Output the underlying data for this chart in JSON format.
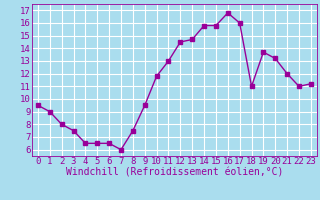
{
  "x": [
    0,
    1,
    2,
    3,
    4,
    5,
    6,
    7,
    8,
    9,
    10,
    11,
    12,
    13,
    14,
    15,
    16,
    17,
    18,
    19,
    20,
    21,
    22,
    23
  ],
  "y": [
    9.5,
    9.0,
    8.0,
    7.5,
    6.5,
    6.5,
    6.5,
    6.0,
    7.5,
    9.5,
    11.8,
    13.0,
    14.5,
    14.7,
    15.8,
    15.8,
    16.8,
    16.0,
    11.0,
    13.7,
    13.2,
    12.0,
    11.0,
    11.2
  ],
  "line_color": "#990099",
  "marker_color": "#990099",
  "bg_color": "#aaddee",
  "grid_color": "#ffffff",
  "xlabel": "Windchill (Refroidissement éolien,°C)",
  "xlabel_color": "#990099",
  "tick_color": "#990099",
  "ylim": [
    5.5,
    17.5
  ],
  "xlim": [
    -0.5,
    23.5
  ],
  "yticks": [
    6,
    7,
    8,
    9,
    10,
    11,
    12,
    13,
    14,
    15,
    16,
    17
  ],
  "xticks": [
    0,
    1,
    2,
    3,
    4,
    5,
    6,
    7,
    8,
    9,
    10,
    11,
    12,
    13,
    14,
    15,
    16,
    17,
    18,
    19,
    20,
    21,
    22,
    23
  ],
  "tick_fontsize": 6.5,
  "xlabel_fontsize": 7.0
}
